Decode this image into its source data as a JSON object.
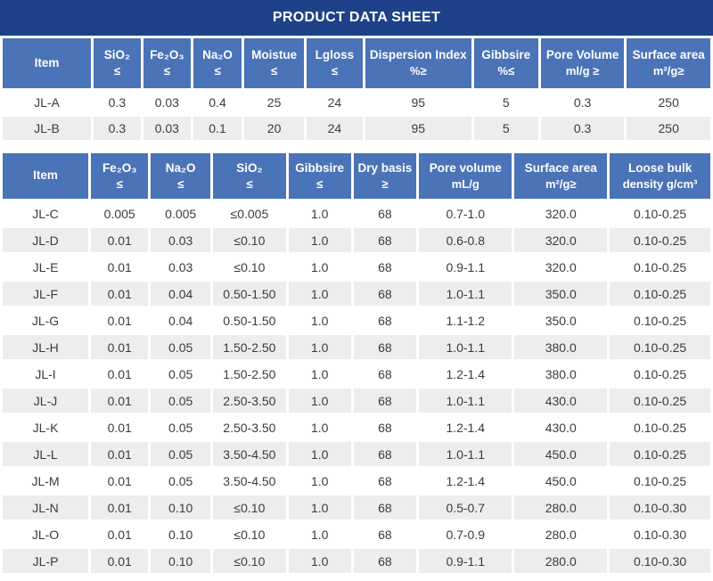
{
  "banner": {
    "title": "PRODUCT DATA SHEET"
  },
  "colors": {
    "banner_bg": "#1d4289",
    "header_bg": "#4a73b8",
    "stripe_bg": "#ededed",
    "row_bg": "#ffffff",
    "header_text": "#ffffff",
    "body_text": "#3b3b3b"
  },
  "table1": {
    "columns": [
      {
        "label": "Item",
        "sub": ""
      },
      {
        "label": "SiO₂",
        "sub": "≤"
      },
      {
        "label": "Fe₂O₃",
        "sub": "≤"
      },
      {
        "label": "Na₂O",
        "sub": "≤"
      },
      {
        "label": "Moistue",
        "sub": "≤"
      },
      {
        "label": "Lgloss",
        "sub": "≤"
      },
      {
        "label": "Dispersion Index",
        "sub": "%≥"
      },
      {
        "label": "Gibbsire",
        "sub": "%≤"
      },
      {
        "label": "Pore Volume",
        "sub": "ml/g ≥"
      },
      {
        "label": "Surface area",
        "sub": "m²/g≥"
      }
    ],
    "col_widths": [
      "12.9%",
      "6.9%",
      "6.9%",
      "7.1%",
      "8.7%",
      "8.2%",
      "15.5%",
      "9.4%",
      "12.2%",
      "12.2%"
    ],
    "rows": [
      [
        "JL-A",
        "0.3",
        "0.03",
        "0.4",
        "25",
        "24",
        "95",
        "5",
        "0.3",
        "250"
      ],
      [
        "JL-B",
        "0.3",
        "0.03",
        "0.1",
        "20",
        "24",
        "95",
        "5",
        "0.3",
        "250"
      ]
    ]
  },
  "table2": {
    "columns": [
      {
        "label": "Item",
        "sub": ""
      },
      {
        "label": "Fe₂O₃",
        "sub": "≤"
      },
      {
        "label": "Na₂O",
        "sub": "≤"
      },
      {
        "label": "SiO₂",
        "sub": "≤"
      },
      {
        "label": "Gibbsire",
        "sub": "≤"
      },
      {
        "label": "Dry basis",
        "sub": "≥"
      },
      {
        "label": "Pore volume",
        "sub": "mL/g"
      },
      {
        "label": "Surface area",
        "sub": "m²/g≥"
      },
      {
        "label": "Loose bulk",
        "sub": "density g/cm³"
      }
    ],
    "col_widths": [
      "12.1%",
      "8.1%",
      "8.4%",
      "10.3%",
      "8.8%",
      "8.9%",
      "13.1%",
      "13.1%",
      "14.2%"
    ],
    "rows": [
      [
        "JL-C",
        "0.005",
        "0.005",
        "≤0.005",
        "1.0",
        "68",
        "0.7-1.0",
        "320.0",
        "0.10-0.25"
      ],
      [
        "JL-D",
        "0.01",
        "0.03",
        "≤0.10",
        "1.0",
        "68",
        "0.6-0.8",
        "320.0",
        "0.10-0.25"
      ],
      [
        "JL-E",
        "0.01",
        "0.03",
        "≤0.10",
        "1.0",
        "68",
        "0.9-1.1",
        "320.0",
        "0.10-0.25"
      ],
      [
        "JL-F",
        "0.01",
        "0.04",
        "0.50-1.50",
        "1.0",
        "68",
        "1.0-1.1",
        "350.0",
        "0.10-0.25"
      ],
      [
        "JL-G",
        "0.01",
        "0.04",
        "0.50-1.50",
        "1.0",
        "68",
        "1.1-1.2",
        "350.0",
        "0.10-0.25"
      ],
      [
        "JL-H",
        "0.01",
        "0.05",
        "1.50-2.50",
        "1.0",
        "68",
        "1.0-1.1",
        "380.0",
        "0.10-0.25"
      ],
      [
        "JL-I",
        "0.01",
        "0.05",
        "1.50-2.50",
        "1.0",
        "68",
        "1.2-1.4",
        "380.0",
        "0.10-0.25"
      ],
      [
        "JL-J",
        "0.01",
        "0.05",
        "2.50-3.50",
        "1.0",
        "68",
        "1.0-1.1",
        "430.0",
        "0.10-0.25"
      ],
      [
        "JL-K",
        "0.01",
        "0.05",
        "2.50-3.50",
        "1.0",
        "68",
        "1.2-1.4",
        "430.0",
        "0.10-0.25"
      ],
      [
        "JL-L",
        "0.01",
        "0.05",
        "3.50-4.50",
        "1.0",
        "68",
        "1.0-1.1",
        "450.0",
        "0.10-0.25"
      ],
      [
        "JL-M",
        "0.01",
        "0.05",
        "3.50-4.50",
        "1.0",
        "68",
        "1.2-1.4",
        "450.0",
        "0.10-0.25"
      ],
      [
        "JL-N",
        "0.01",
        "0.10",
        "≤0.10",
        "1.0",
        "68",
        "0.5-0.7",
        "280.0",
        "0.10-0.30"
      ],
      [
        "JL-O",
        "0.01",
        "0.10",
        "≤0.10",
        "1.0",
        "68",
        "0.7-0.9",
        "280.0",
        "0.10-0.30"
      ],
      [
        "JL-P",
        "0.01",
        "0.10",
        "≤0.10",
        "1.0",
        "68",
        "0.9-1.1",
        "280.0",
        "0.10-0.30"
      ]
    ]
  }
}
